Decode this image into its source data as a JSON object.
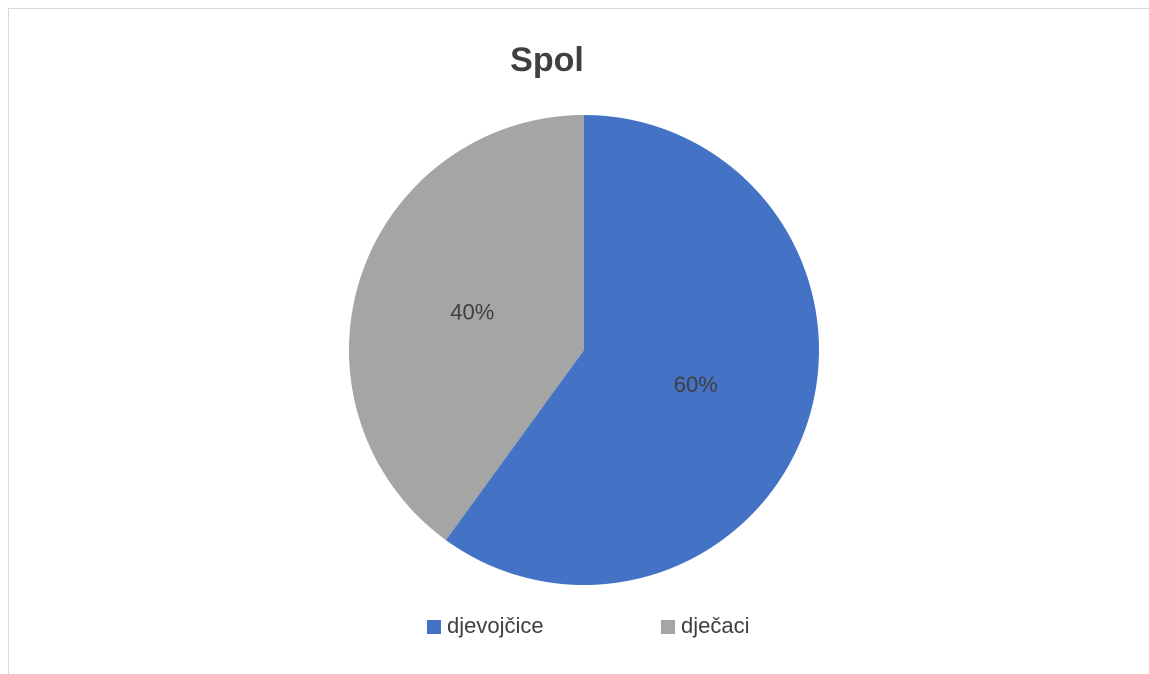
{
  "chart_data": {
    "type": "pie",
    "title": "Spol",
    "categories": [
      "djevojčice",
      "dječaci"
    ],
    "values": [
      60,
      40
    ],
    "value_labels": [
      "60%",
      "40%"
    ],
    "colors": [
      "#4472c4",
      "#a5a5a5"
    ],
    "legend": "bottom"
  }
}
